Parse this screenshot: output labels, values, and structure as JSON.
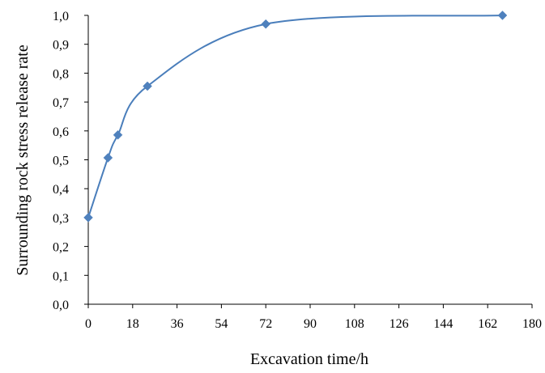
{
  "chart_data": {
    "type": "line",
    "xlabel": "Excavation time/h",
    "ylabel": "Surrounding rock stress release rate",
    "xlim": [
      0,
      180
    ],
    "ylim": [
      0,
      1.0
    ],
    "x_ticks": [
      0,
      18,
      36,
      54,
      72,
      90,
      108,
      126,
      144,
      162,
      180
    ],
    "x_tick_labels": [
      "0",
      "18",
      "36",
      "54",
      "72",
      "90",
      "108",
      "126",
      "144",
      "162",
      "180"
    ],
    "y_ticks": [
      0.0,
      0.1,
      0.2,
      0.3,
      0.4,
      0.5,
      0.6,
      0.7,
      0.8,
      0.9,
      1.0
    ],
    "y_tick_labels": [
      "0,0",
      "0,1",
      "0,2",
      "0,3",
      "0,4",
      "0,5",
      "0,6",
      "0,7",
      "0,8",
      "0,9",
      "1,0"
    ],
    "grid": false,
    "smooth": true,
    "marker": "diamond",
    "series": [
      {
        "x": [
          0,
          8,
          12,
          24,
          72,
          168
        ],
        "y": [
          0.3,
          0.507,
          0.586,
          0.755,
          0.97,
          1.0
        ]
      }
    ],
    "colors": {
      "series": "#4a7ebb",
      "marker": "#4f81bd",
      "axis": "#000000"
    }
  }
}
